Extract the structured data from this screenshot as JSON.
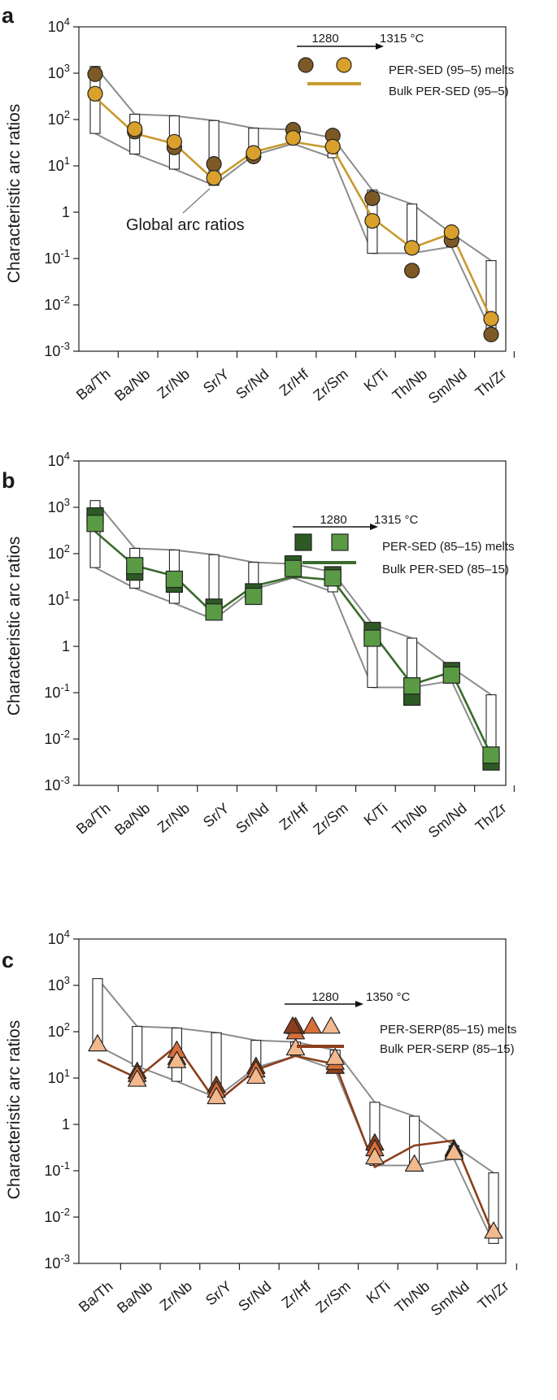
{
  "figure": {
    "categories": [
      "Ba/Th",
      "Ba/Nb",
      "Zr/Nb",
      "Sr/Y",
      "Sr/Nd",
      "Zr/Hf",
      "Zr/Sm",
      "K/Ti",
      "Th/Nb",
      "Sm/Nd",
      "Th/Zr"
    ],
    "ylabel": "Characteristic arc ratios",
    "ytick_labels": [
      "10^-3",
      "10^-2",
      "10^-1",
      "1",
      "10^1",
      "10^2",
      "10^3",
      "10^4"
    ]
  },
  "global_arc": {
    "label": "Global arc ratios",
    "upper": [
      1400,
      130,
      120,
      95,
      65,
      60,
      40,
      3,
      1.5,
      0.35,
      0.09
    ],
    "lower": [
      50,
      18,
      8.5,
      3.8,
      17,
      30,
      15,
      0.13,
      0.13,
      0.18,
      0.0027
    ]
  },
  "chart_data": [
    {
      "panel": "a",
      "type": "scatter",
      "ylabel": "Characteristic arc ratios",
      "yscale": "log",
      "ylim": [
        0.001,
        10000
      ],
      "categories": [
        "Ba/Th",
        "Ba/Nb",
        "Zr/Nb",
        "Sr/Y",
        "Sr/Nd",
        "Zr/Hf",
        "Zr/Sm",
        "K/Ti",
        "Th/Nb",
        "Sm/Nd",
        "Th/Zr"
      ],
      "marker": "circle",
      "temp_low": "1280",
      "temp_high": "1315 °C",
      "melt_legend": "PER-SED (95–5) melts",
      "bulk_legend": "Bulk PER-SED (95–5)",
      "annotation": "Global arc ratios",
      "colors": {
        "low": "#7d5a25",
        "high": "#d9a02c",
        "bulk": "#c89a2e"
      },
      "melts_low": [
        950,
        55,
        25,
        11,
        16,
        60,
        45,
        2,
        0.055,
        0.25,
        0.0023
      ],
      "melts_high": [
        360,
        62,
        33,
        5.5,
        19,
        40,
        26,
        0.65,
        0.17,
        0.37,
        0.005
      ],
      "bulk": [
        300,
        50,
        30,
        5,
        20,
        33,
        24,
        0.75,
        0.17,
        0.35,
        0.005
      ]
    },
    {
      "panel": "b",
      "type": "scatter",
      "ylabel": "Characteristic arc ratios",
      "yscale": "log",
      "ylim": [
        0.001,
        10000
      ],
      "categories": [
        "Ba/Th",
        "Ba/Nb",
        "Zr/Nb",
        "Sr/Y",
        "Sr/Nd",
        "Zr/Hf",
        "Zr/Sm",
        "K/Ti",
        "Th/Nb",
        "Sm/Nd",
        "Th/Zr"
      ],
      "marker": "square",
      "temp_low": "1280",
      "temp_high": "1315 °C",
      "melt_legend": "PER-SED (85–15) melts",
      "bulk_legend": "Bulk PER-SED (85–15)",
      "colors": {
        "low": "#2d5a24",
        "high": "#5a9a44",
        "bulk": "#3a6b2c"
      },
      "melts_low": [
        650,
        40,
        22,
        7,
        15,
        60,
        35,
        2.2,
        0.08,
        0.3,
        0.0032
      ],
      "melts_high": [
        450,
        55,
        28,
        5.5,
        12,
        48,
        30,
        1.5,
        0.14,
        0.24,
        0.0045
      ],
      "bulk": [
        300,
        55,
        33,
        5,
        20,
        32,
        27,
        2,
        0.15,
        0.28,
        0.0045
      ]
    },
    {
      "panel": "c",
      "type": "scatter",
      "ylabel": "Characteristic arc ratios",
      "yscale": "log",
      "ylim": [
        0.001,
        10000
      ],
      "categories": [
        "Ba/Th",
        "Ba/Nb",
        "Zr/Nb",
        "Sr/Y",
        "Sr/Nd",
        "Zr/Hf",
        "Zr/Sm",
        "K/Ti",
        "Th/Nb",
        "Sm/Nd",
        "Th/Zr"
      ],
      "marker": "triangle",
      "temp_low": "1280",
      "temp_high": "1350 °C",
      "melt_legend": "PER-SERP(85–15) melts",
      "bulk_legend": "Bulk PER-SERP (85–15)",
      "colors": {
        "low": "#8b3f1c",
        "mid": "#d9703a",
        "high": "#f3b98e",
        "bulk": "#8b3f1c"
      },
      "melts_low": [
        null,
        14,
        28,
        7,
        18,
        130,
        18,
        0.4,
        null,
        0.3,
        null
      ],
      "melts_mid": [
        null,
        12,
        40,
        5.5,
        15,
        100,
        22,
        0.3,
        null,
        0.27,
        null
      ],
      "melts_high": [
        55,
        9.5,
        24,
        4,
        11,
        45,
        28,
        0.2,
        0.14,
        0.25,
        0.005
      ],
      "bulk": [
        25,
        10,
        50,
        3,
        15,
        30,
        20,
        0.12,
        0.35,
        0.45,
        0.004
      ]
    }
  ]
}
